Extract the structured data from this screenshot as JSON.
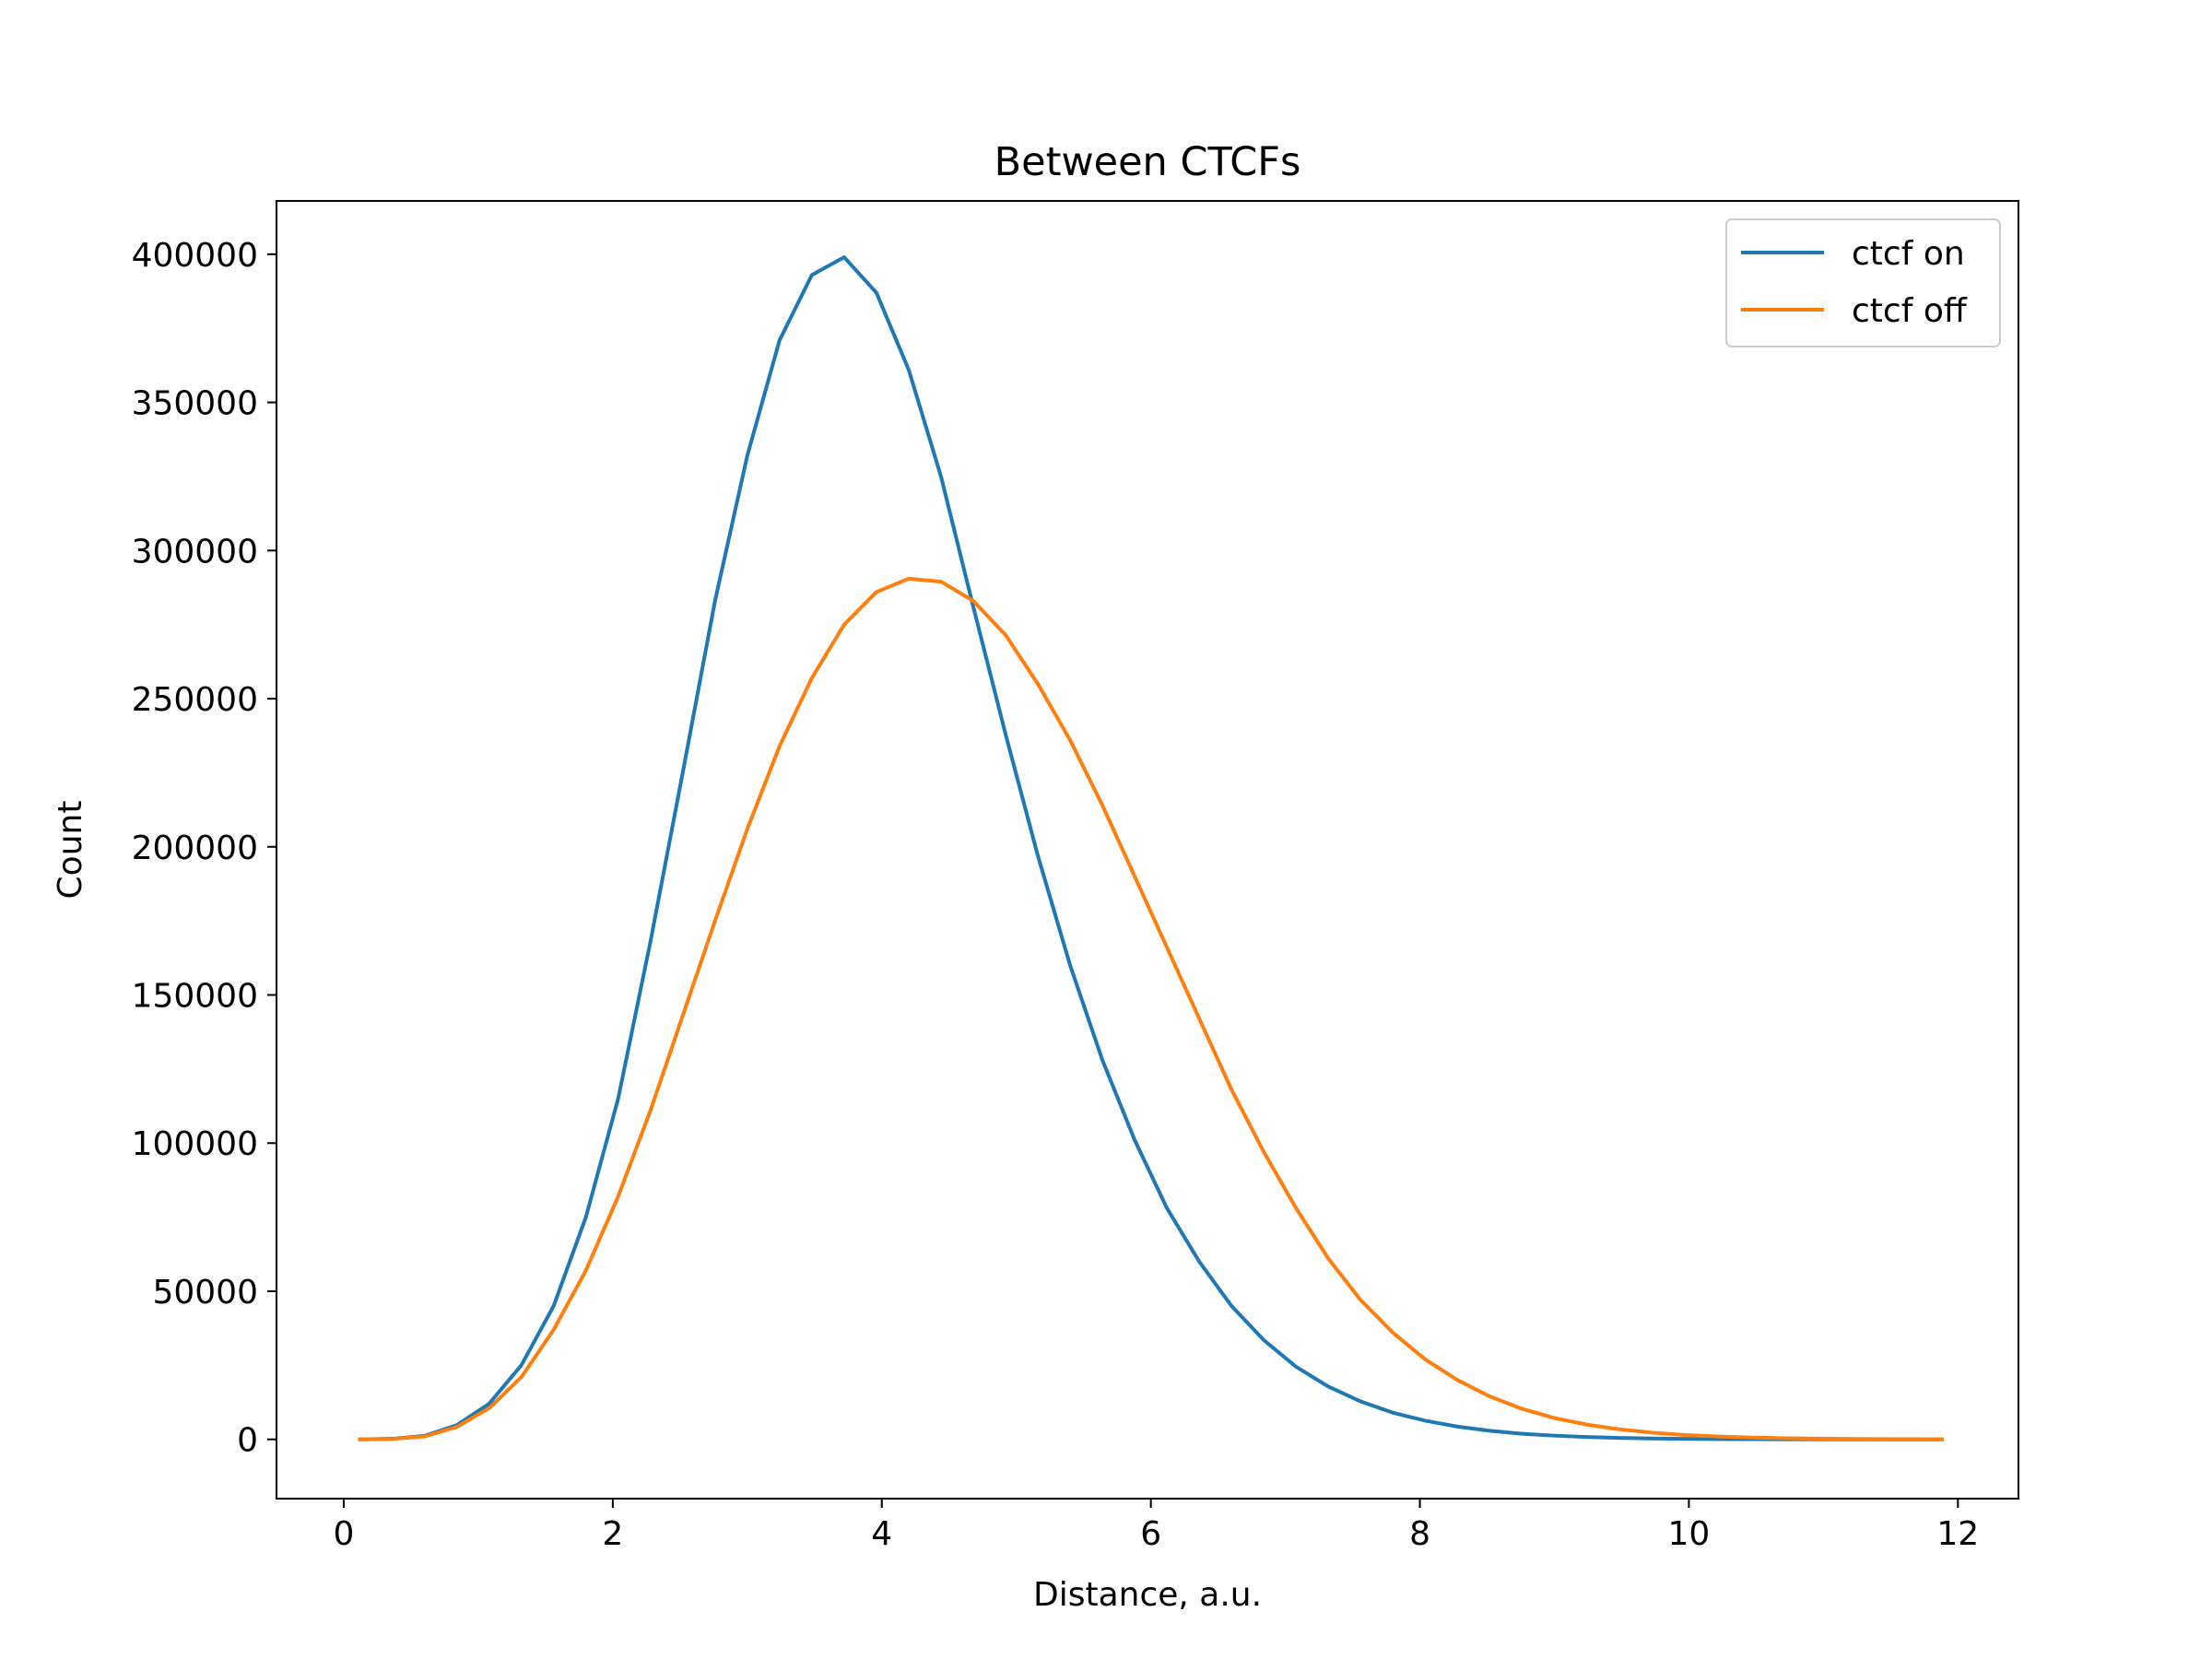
{
  "chart_data": {
    "type": "line",
    "title": "Between CTCFs",
    "xlabel": "Distance, a.u.",
    "ylabel": "Count",
    "xlim": [
      -0.5,
      12.45
    ],
    "ylim": [
      -20000,
      418000
    ],
    "xticks": [
      0,
      2,
      4,
      6,
      8,
      10,
      12
    ],
    "xtick_labels": [
      "0",
      "2",
      "4",
      "6",
      "8",
      "10",
      "12"
    ],
    "yticks": [
      0,
      50000,
      100000,
      150000,
      200000,
      250000,
      300000,
      350000,
      400000
    ],
    "ytick_labels": [
      "0",
      "50000",
      "100000",
      "150000",
      "200000",
      "250000",
      "300000",
      "350000",
      "400000"
    ],
    "grid": false,
    "legend_position": "upper right",
    "x": [
      0.12,
      0.36,
      0.6,
      0.84,
      1.08,
      1.32,
      1.56,
      1.8,
      2.04,
      2.28,
      2.52,
      2.76,
      3.0,
      3.24,
      3.48,
      3.72,
      3.96,
      4.2,
      4.44,
      4.68,
      4.92,
      5.16,
      5.4,
      5.64,
      5.88,
      6.12,
      6.36,
      6.6,
      6.84,
      7.08,
      7.32,
      7.56,
      7.8,
      8.04,
      8.28,
      8.52,
      8.76,
      9.0,
      9.24,
      9.48,
      9.72,
      9.96,
      10.2,
      10.44,
      10.68,
      10.92,
      11.16,
      11.4,
      11.64,
      11.88
    ],
    "series": [
      {
        "name": "ctcf on",
        "color": "#1f77b4",
        "values": [
          0,
          200,
          1200,
          4800,
          12000,
          25000,
          45000,
          75000,
          115000,
          168000,
          225000,
          283000,
          332000,
          371000,
          393000,
          399000,
          387000,
          361000,
          325000,
          281000,
          238000,
          197000,
          160000,
          128000,
          101000,
          78000,
          60000,
          45000,
          33500,
          24500,
          17800,
          12800,
          9000,
          6300,
          4300,
          2900,
          1900,
          1250,
          800,
          500,
          300,
          180,
          100,
          60,
          30,
          15,
          8,
          4,
          2,
          1
        ]
      },
      {
        "name": "ctcf off",
        "color": "#ff7f0e",
        "values": [
          0,
          150,
          1000,
          4200,
          10500,
          21000,
          37000,
          57000,
          82000,
          111000,
          143000,
          175000,
          206000,
          234000,
          257000,
          275000,
          286000,
          290500,
          289500,
          283000,
          271500,
          255000,
          236000,
          214000,
          190000,
          166000,
          142000,
          118000,
          97000,
          78000,
          61000,
          47000,
          36000,
          27000,
          20000,
          14500,
          10300,
          7200,
          5000,
          3400,
          2300,
          1500,
          1000,
          650,
          420,
          270,
          170,
          110,
          70,
          45
        ]
      }
    ]
  }
}
